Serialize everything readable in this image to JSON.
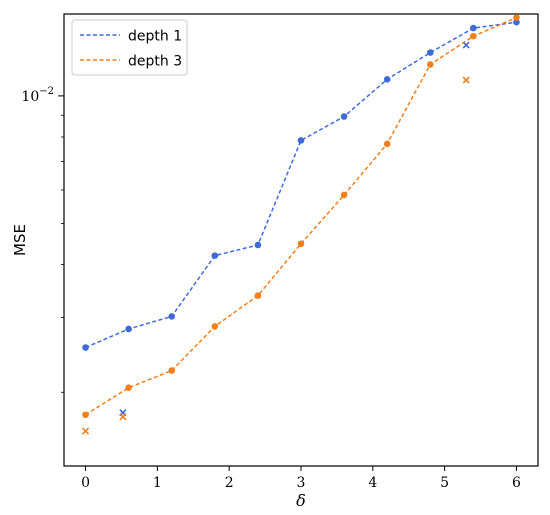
{
  "chart_data": {
    "type": "line",
    "title": "",
    "xlabel": "δ",
    "ylabel": "MSE",
    "xlim": [
      -0.3,
      6.3
    ],
    "ylim": [
      0.00134,
      0.0156
    ],
    "yscale": "log",
    "xticks": [
      0,
      1,
      2,
      3,
      4,
      5,
      6
    ],
    "yticks": [
      {
        "value": 0.01,
        "base": "10",
        "exp": "−2"
      }
    ],
    "grid": false,
    "legend_position": "top-left",
    "series": [
      {
        "name": "depth 1",
        "color": "#3e6bd8",
        "x": [
          0,
          0.6,
          1.2,
          1.8,
          2.4,
          3.0,
          3.6,
          4.2,
          4.8,
          5.4,
          6.0
        ],
        "y": [
          0.00255,
          0.00282,
          0.00302,
          0.0042,
          0.00445,
          0.00785,
          0.00894,
          0.01094,
          0.01265,
          0.01445,
          0.01492
        ],
        "extra_markers": {
          "marker": "x",
          "x": [
            0.52,
            5.3
          ],
          "y": [
            0.00179,
            0.01318
          ]
        }
      },
      {
        "name": "depth 3",
        "color": "#f1801a",
        "x": [
          0,
          0.6,
          1.2,
          1.8,
          2.4,
          3.0,
          3.6,
          4.2,
          4.8,
          5.4,
          6.0
        ],
        "y": [
          0.00177,
          0.00205,
          0.00225,
          0.00286,
          0.00338,
          0.00448,
          0.00584,
          0.00771,
          0.01186,
          0.01383,
          0.0153
        ],
        "extra_markers": {
          "marker": "x",
          "x": [
            0,
            0.52,
            5.3
          ],
          "y": [
            0.00162,
            0.00175,
            0.0109
          ]
        }
      }
    ]
  }
}
